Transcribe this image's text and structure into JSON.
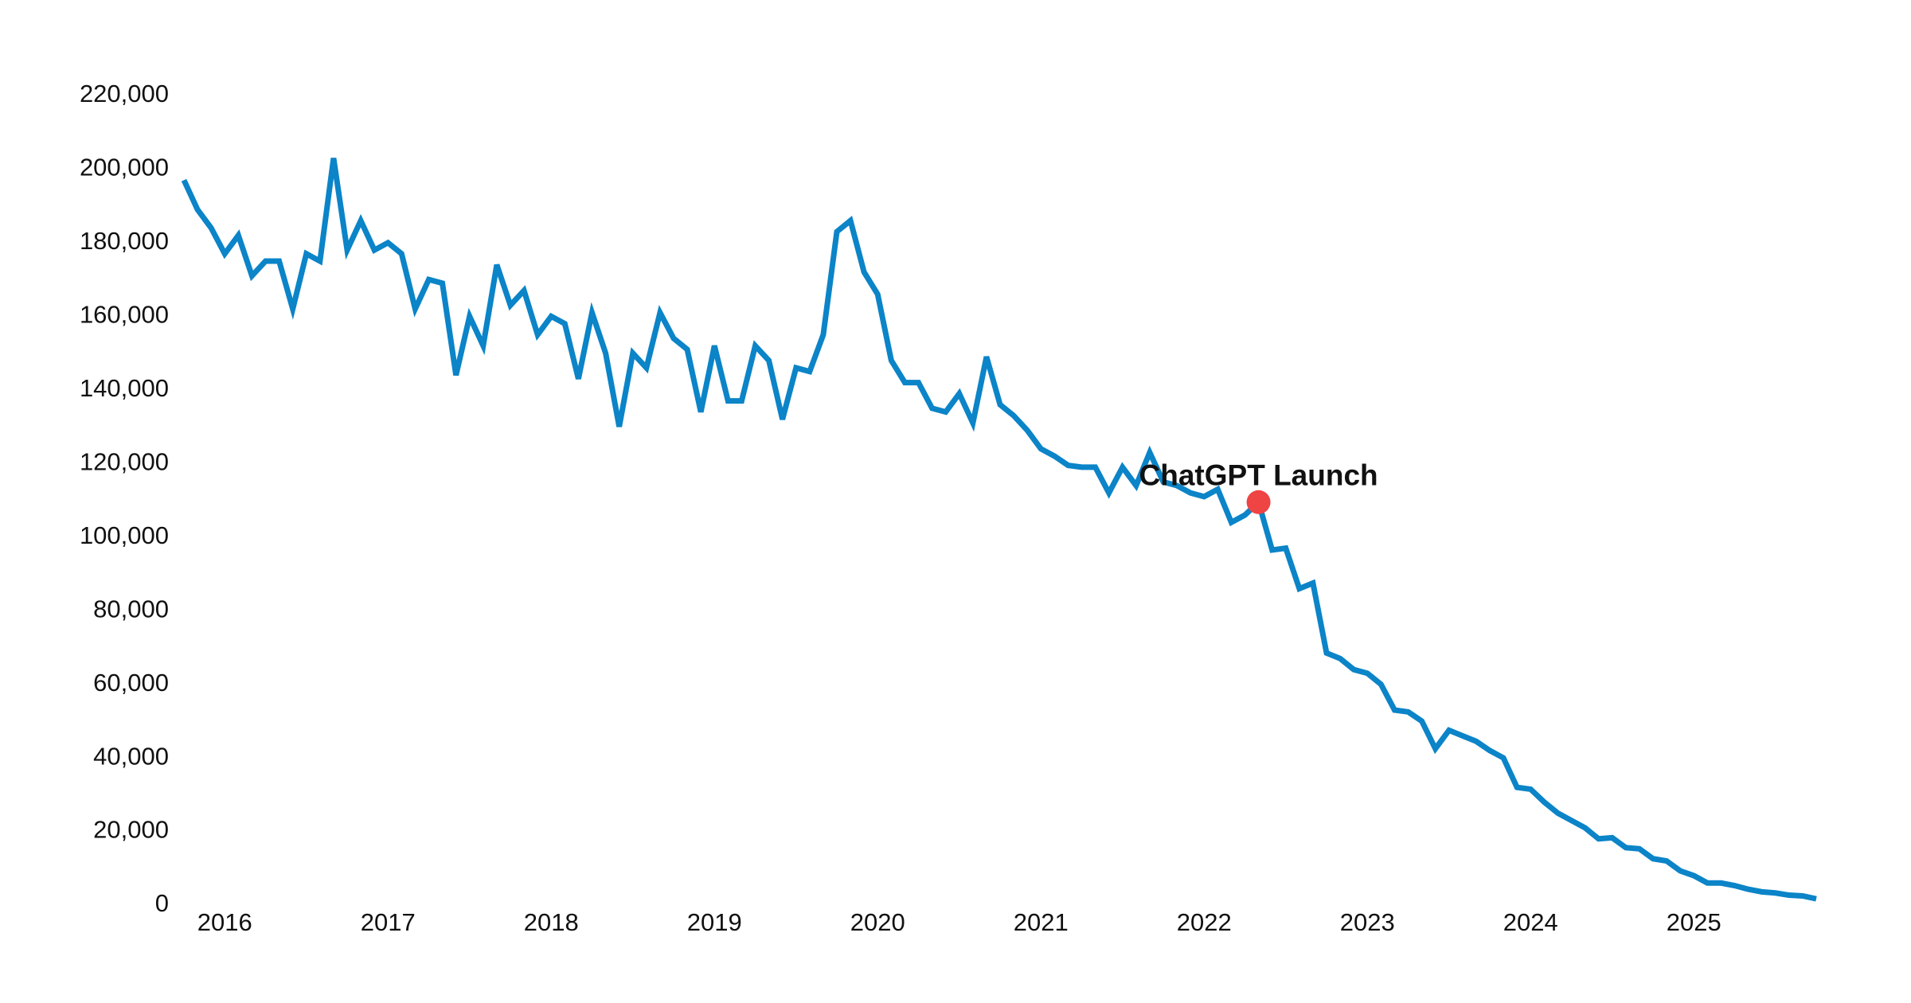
{
  "chart_data": {
    "type": "line",
    "values": [
      197000,
      189000,
      184000,
      177000,
      182000,
      171000,
      175000,
      175000,
      162000,
      177000,
      175000,
      203000,
      178000,
      186000,
      178000,
      180000,
      177000,
      162000,
      170000,
      169000,
      144000,
      160000,
      152000,
      174000,
      163000,
      167000,
      155000,
      160000,
      158000,
      143000,
      161000,
      150000,
      130000,
      150000,
      146000,
      161000,
      154000,
      151000,
      134000,
      152000,
      137000,
      137000,
      152000,
      148000,
      132000,
      146000,
      145000,
      155000,
      183000,
      186000,
      172000,
      166000,
      148000,
      142000,
      142000,
      135000,
      134000,
      139000,
      131000,
      149000,
      136000,
      133000,
      129000,
      124000,
      122000,
      119500,
      119000,
      119000,
      112000,
      119000,
      114000,
      123000,
      115000,
      114000,
      112000,
      111000,
      113000,
      104000,
      106000,
      109500,
      96500,
      97000,
      86000,
      87500,
      68500,
      67000,
      64000,
      63000,
      60000,
      53000,
      52500,
      50000,
      42500,
      47500,
      46000,
      44500,
      42000,
      40000,
      32000,
      31500,
      28000,
      25000,
      23000,
      21000,
      18000,
      18300,
      15600,
      15300,
      12600,
      12000,
      9300,
      8000,
      6000,
      6000,
      5300,
      4300,
      3600,
      3300,
      2700,
      2500,
      1700
    ],
    "color": "#0b84c8",
    "xlim": [
      0,
      120
    ],
    "xticks": [
      {
        "value": 3,
        "label": "2016"
      },
      {
        "value": 15,
        "label": "2017"
      },
      {
        "value": 27,
        "label": "2018"
      },
      {
        "value": 39,
        "label": "2019"
      },
      {
        "value": 51,
        "label": "2020"
      },
      {
        "value": 63,
        "label": "2021"
      },
      {
        "value": 75,
        "label": "2022"
      },
      {
        "value": 87,
        "label": "2023"
      },
      {
        "value": 99,
        "label": "2024"
      },
      {
        "value": 111,
        "label": "2025"
      }
    ],
    "ylim": [
      0,
      220000
    ],
    "yticks": [
      0,
      {
        "value": 20000,
        "label": "20,000"
      },
      {
        "value": 40000,
        "label": "40,000"
      },
      {
        "value": 60000,
        "label": "60,000"
      },
      {
        "value": 80000,
        "label": "80,000"
      },
      {
        "value": 100000,
        "label": "100,000"
      },
      {
        "value": 120000,
        "label": "120,000"
      },
      {
        "value": 140000,
        "label": "140,000"
      },
      {
        "value": 160000,
        "label": "160,000"
      },
      {
        "value": 180000,
        "label": "180,000"
      },
      {
        "value": 200000,
        "label": "200,000"
      },
      {
        "value": 220000,
        "label": "220,000"
      }
    ],
    "grid": false,
    "annotations": [
      {
        "label": "ChatGPT Launch",
        "x": 79,
        "y": 109500,
        "color": "#ef4444"
      }
    ]
  }
}
